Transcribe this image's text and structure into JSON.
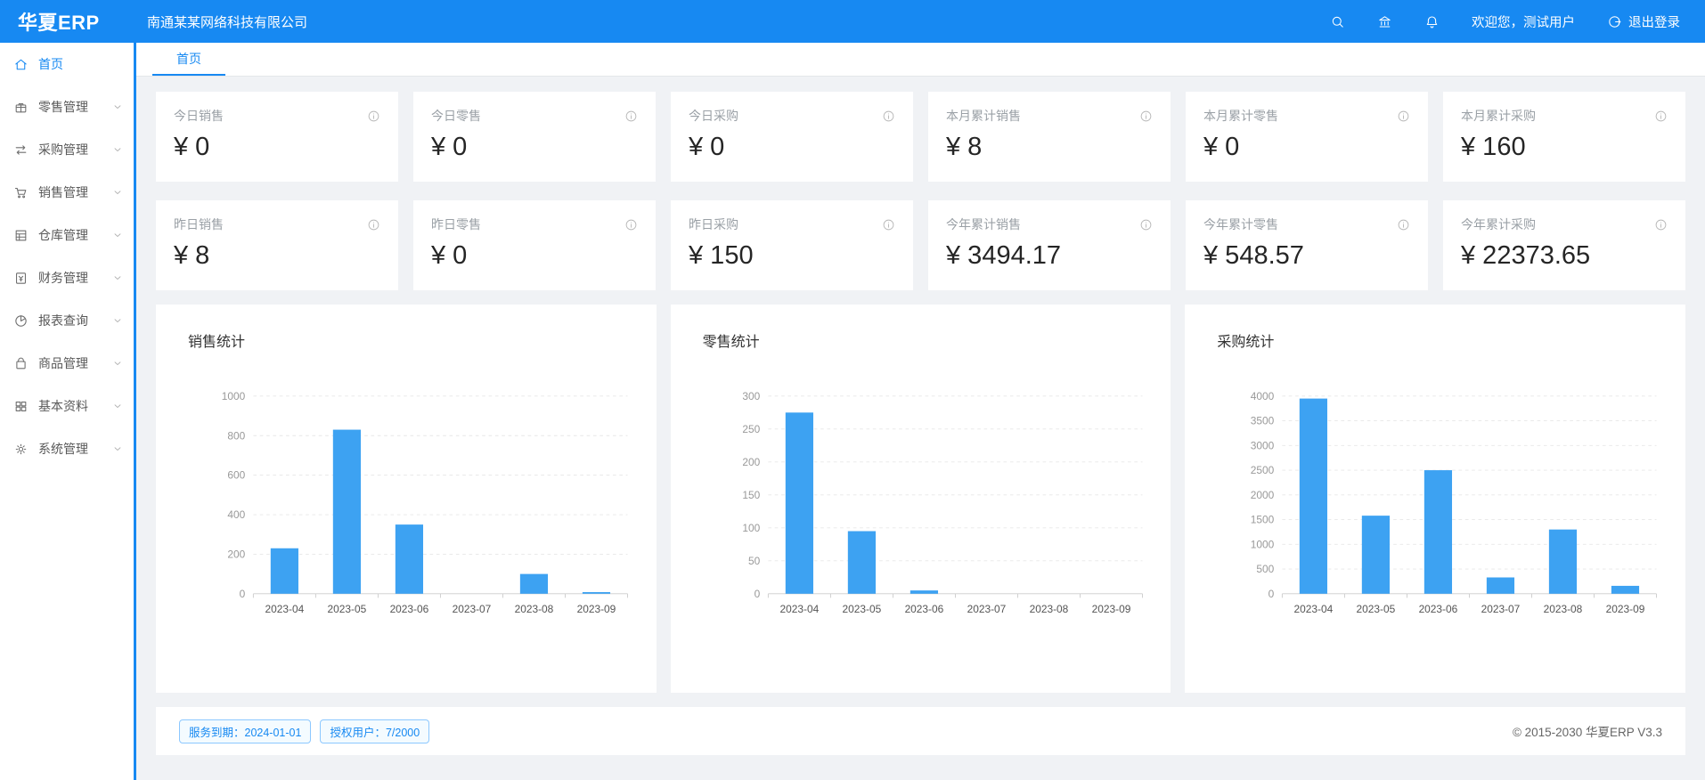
{
  "colors": {
    "header_bg": "#1789f2",
    "accent": "#1789f2",
    "bar": "#3da2f2",
    "content_bg": "#f0f2f5",
    "badge_border": "#8cc8ff"
  },
  "header": {
    "logo": "华夏ERP",
    "company": "南通某某网络科技有限公司",
    "welcome": "欢迎您，测试用户",
    "logout_label": "退出登录",
    "icons": [
      "search-icon",
      "bank-icon",
      "bell-icon",
      "logout-icon"
    ]
  },
  "sidebar": {
    "items": [
      {
        "id": "home",
        "label": "首页",
        "icon": "home-icon",
        "active": true,
        "has_children": false
      },
      {
        "id": "retail",
        "label": "零售管理",
        "icon": "retail-icon",
        "active": false,
        "has_children": true
      },
      {
        "id": "purchase",
        "label": "采购管理",
        "icon": "purchase-icon",
        "active": false,
        "has_children": true
      },
      {
        "id": "sales",
        "label": "销售管理",
        "icon": "sales-icon",
        "active": false,
        "has_children": true
      },
      {
        "id": "warehouse",
        "label": "仓库管理",
        "icon": "warehouse-icon",
        "active": false,
        "has_children": true
      },
      {
        "id": "finance",
        "label": "财务管理",
        "icon": "finance-icon",
        "active": false,
        "has_children": true
      },
      {
        "id": "report",
        "label": "报表查询",
        "icon": "report-icon",
        "active": false,
        "has_children": true
      },
      {
        "id": "product",
        "label": "商品管理",
        "icon": "product-icon",
        "active": false,
        "has_children": true
      },
      {
        "id": "basicdata",
        "label": "基本资料",
        "icon": "basic-data-icon",
        "active": false,
        "has_children": true
      },
      {
        "id": "system",
        "label": "系统管理",
        "icon": "system-icon",
        "active": false,
        "has_children": true
      }
    ]
  },
  "tabs": [
    {
      "label": "首页",
      "active": true
    }
  ],
  "stat_cards": [
    {
      "label": "今日销售",
      "value": "¥ 0"
    },
    {
      "label": "今日零售",
      "value": "¥ 0"
    },
    {
      "label": "今日采购",
      "value": "¥ 0"
    },
    {
      "label": "本月累计销售",
      "value": "¥ 8"
    },
    {
      "label": "本月累计零售",
      "value": "¥ 0"
    },
    {
      "label": "本月累计采购",
      "value": "¥ 160"
    },
    {
      "label": "昨日销售",
      "value": "¥ 8"
    },
    {
      "label": "昨日零售",
      "value": "¥ 0"
    },
    {
      "label": "昨日采购",
      "value": "¥ 150"
    },
    {
      "label": "今年累计销售",
      "value": "¥ 3494.17"
    },
    {
      "label": "今年累计零售",
      "value": "¥ 548.57"
    },
    {
      "label": "今年累计采购",
      "value": "¥ 22373.65"
    }
  ],
  "chart_data": [
    {
      "type": "bar",
      "title": "销售统计",
      "categories": [
        "2023-04",
        "2023-05",
        "2023-06",
        "2023-07",
        "2023-08",
        "2023-09"
      ],
      "values": [
        230,
        830,
        350,
        0,
        100,
        8
      ],
      "xlabel": "",
      "ylabel": "",
      "ylim": [
        0,
        1000
      ],
      "ytick_step": 200,
      "grid": "dashed-horizontal",
      "legend": "none"
    },
    {
      "type": "bar",
      "title": "零售统计",
      "categories": [
        "2023-04",
        "2023-05",
        "2023-06",
        "2023-07",
        "2023-08",
        "2023-09"
      ],
      "values": [
        275,
        95,
        5,
        0,
        0,
        0
      ],
      "xlabel": "",
      "ylabel": "",
      "ylim": [
        0,
        300
      ],
      "ytick_step": 50,
      "grid": "dashed-horizontal",
      "legend": "none"
    },
    {
      "type": "bar",
      "title": "采购统计",
      "categories": [
        "2023-04",
        "2023-05",
        "2023-06",
        "2023-07",
        "2023-08",
        "2023-09"
      ],
      "values": [
        3950,
        1580,
        2500,
        330,
        1300,
        160
      ],
      "xlabel": "",
      "ylabel": "",
      "ylim": [
        0,
        4000
      ],
      "ytick_step": 500,
      "grid": "dashed-horizontal",
      "legend": "none"
    }
  ],
  "footer": {
    "badges": [
      "服务到期：2024-01-01",
      "授权用户：7/2000"
    ],
    "copyright": "© 2015-2030 华夏ERP V3.3"
  }
}
